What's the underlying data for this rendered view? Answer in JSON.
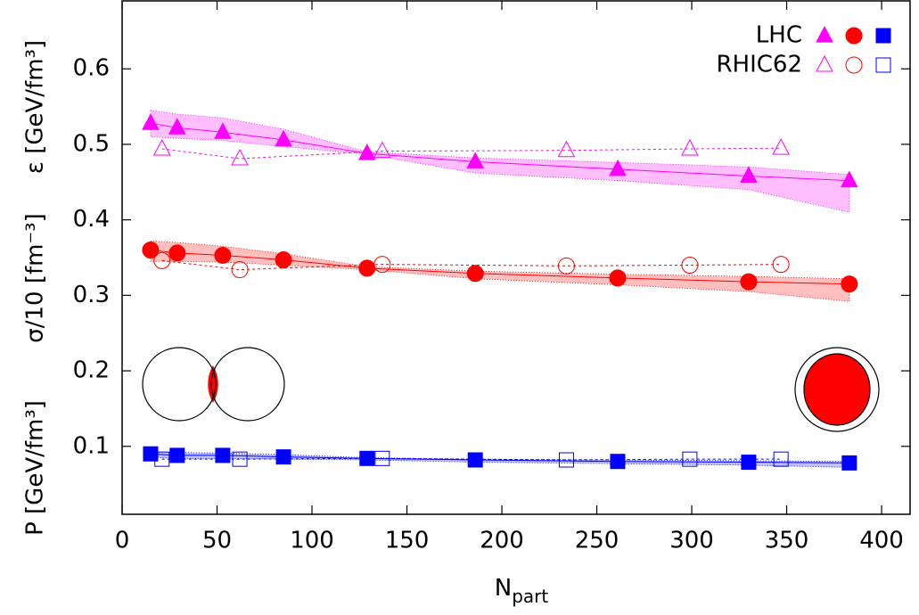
{
  "chart_data": {
    "type": "scatter",
    "y_labels": [
      "ε [GeV/fm³]",
      "σ/10 [fm⁻³]",
      "P [GeV/fm³]"
    ],
    "x_label": [
      "N",
      "part"
    ],
    "xlim": [
      0,
      415
    ],
    "ylim": [
      0.01,
      0.69
    ],
    "xticks": [
      0,
      50,
      100,
      150,
      200,
      250,
      300,
      350,
      400
    ],
    "yticks": [
      0.1,
      0.2,
      0.3,
      0.4,
      0.5,
      0.6
    ],
    "legend": "top-right",
    "datasets": [
      {
        "name": "LHC",
        "filled": true,
        "line": "solid",
        "x": [
          15,
          29,
          53,
          85,
          129,
          186,
          261,
          330,
          383
        ],
        "series": [
          {
            "marker": "triangle",
            "color": "#ff00ff",
            "values": [
              0.528,
              0.522,
              0.516,
              0.506,
              0.488,
              0.477,
              0.467,
              0.458,
              0.452
            ],
            "band_low": [
              0.51,
              0.508,
              0.505,
              0.497,
              0.487,
              0.462,
              0.452,
              0.44,
              0.41
            ],
            "band_high": [
              0.545,
              0.54,
              0.535,
              0.52,
              0.49,
              0.482,
              0.476,
              0.47,
              0.46
            ]
          },
          {
            "marker": "circle",
            "color": "#ff0000",
            "values": [
              0.36,
              0.356,
              0.353,
              0.347,
              0.336,
              0.329,
              0.323,
              0.318,
              0.315
            ],
            "band_low": [
              0.345,
              0.345,
              0.344,
              0.34,
              0.334,
              0.322,
              0.314,
              0.305,
              0.292
            ],
            "band_high": [
              0.372,
              0.37,
              0.365,
              0.355,
              0.338,
              0.332,
              0.328,
              0.325,
              0.322
            ]
          },
          {
            "marker": "square",
            "color": "#0000ff",
            "values": [
              0.09,
              0.088,
              0.088,
              0.086,
              0.084,
              0.082,
              0.08,
              0.079,
              0.078
            ],
            "band_low": [
              0.085,
              0.084,
              0.084,
              0.083,
              0.082,
              0.079,
              0.077,
              0.075,
              0.072
            ],
            "band_high": [
              0.093,
              0.092,
              0.091,
              0.089,
              0.085,
              0.083,
              0.082,
              0.081,
              0.08
            ]
          }
        ]
      },
      {
        "name": "RHIC62",
        "filled": false,
        "line": "dashed",
        "x": [
          21,
          62,
          137,
          234,
          299,
          347
        ],
        "series": [
          {
            "marker": "triangle",
            "color": "#ff00ff",
            "values": [
              0.494,
              0.481,
              0.491,
              0.492,
              0.494,
              0.495
            ]
          },
          {
            "marker": "circle",
            "color": "#ff0000",
            "values": [
              0.346,
              0.334,
              0.341,
              0.339,
              0.34,
              0.341
            ]
          },
          {
            "marker": "square",
            "color": "#0000ff",
            "values": [
              0.083,
              0.083,
              0.084,
              0.082,
              0.083,
              0.083
            ]
          }
        ]
      }
    ]
  }
}
